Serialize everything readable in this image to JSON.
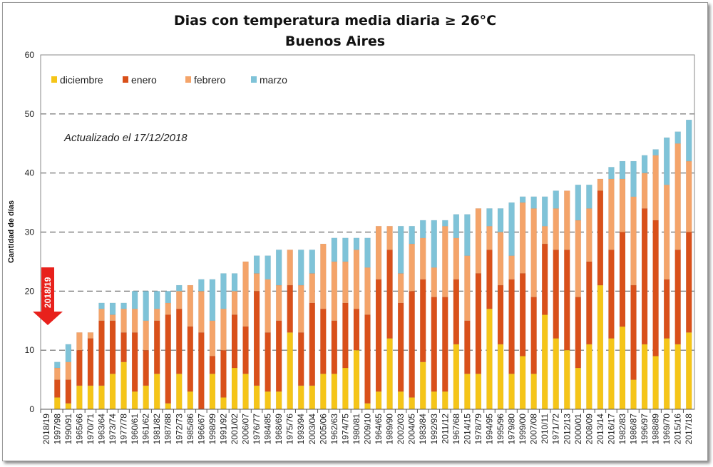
{
  "chart_data": {
    "type": "bar",
    "stacked": true,
    "title": "Dias con temperatura media diaria ≥ 26°C",
    "subtitle": "Buenos Aires",
    "xlabel": "",
    "ylabel": "Cantidad de días",
    "ylim": [
      0,
      60
    ],
    "yticks": [
      0,
      10,
      20,
      30,
      40,
      50,
      60
    ],
    "grid": "horizontal dashed",
    "legend": "top-left",
    "annotation": "Actualizado el 17/12/2018",
    "highlight": {
      "label": "2018/19",
      "color": "#e8211c"
    },
    "categories": [
      "2018/19",
      "1997/98",
      "1990/91",
      "1965/66",
      "1970/71",
      "1963/64",
      "1973/74",
      "1977/78",
      "1960/61",
      "1961/62",
      "1981/82",
      "1987/88",
      "1972/73",
      "1985/86",
      "1966/67",
      "1998/99",
      "1991/92",
      "2001/02",
      "2006/07",
      "1976/77",
      "1984/85",
      "1968/69",
      "1975/76",
      "1993/94",
      "2003/04",
      "2005/06",
      "1962/63",
      "1974/75",
      "1980/81",
      "2009/10",
      "1964/65",
      "1989/90",
      "2002/03",
      "2004/05",
      "1983/84",
      "1992/93",
      "2011/12",
      "1967/68",
      "2014/15",
      "1978/79",
      "1994/95",
      "1995/96",
      "1979/80",
      "1999/00",
      "2007/08",
      "2010/11",
      "1971/72",
      "2012/13",
      "2000/01",
      "2008/09",
      "2013/14",
      "2016/17",
      "1982/83",
      "1986/87",
      "1996/97",
      "1988/89",
      "1969/70",
      "2015/16",
      "2017/18"
    ],
    "series": [
      {
        "name": "diciembre",
        "color": "#f5c518",
        "values": [
          0,
          2,
          1,
          4,
          4,
          4,
          6,
          8,
          3,
          4,
          6,
          1,
          6,
          3,
          0,
          6,
          2,
          7,
          6,
          4,
          3,
          3,
          13,
          4,
          4,
          6,
          6,
          7,
          10,
          1,
          3,
          12,
          3,
          2,
          8,
          3,
          3,
          11,
          6,
          6,
          17,
          11,
          6,
          9,
          6,
          16,
          12,
          10,
          7,
          11,
          21,
          12,
          14,
          5,
          11,
          9,
          12,
          11,
          13
        ]
      },
      {
        "name": "enero",
        "color": "#d9501a",
        "values": [
          0,
          3,
          4,
          6,
          8,
          11,
          9,
          5,
          10,
          6,
          9,
          15,
          11,
          11,
          13,
          3,
          8,
          9,
          8,
          16,
          10,
          12,
          8,
          9,
          14,
          11,
          9,
          11,
          7,
          15,
          19,
          15,
          15,
          18,
          14,
          16,
          16,
          11,
          9,
          17,
          10,
          10,
          16,
          14,
          13,
          12,
          15,
          17,
          12,
          14,
          16,
          15,
          16,
          16,
          23,
          23,
          10,
          16,
          17
        ]
      },
      {
        "name": "febrero",
        "color": "#f4a46a",
        "values": [
          0,
          2,
          3,
          3,
          1,
          2,
          1,
          4,
          4,
          5,
          2,
          2,
          3,
          7,
          7,
          6,
          7,
          4,
          11,
          3,
          9,
          6,
          6,
          8,
          5,
          11,
          10,
          7,
          10,
          8,
          9,
          4,
          5,
          8,
          7,
          5,
          12,
          7,
          11,
          11,
          4,
          9,
          4,
          12,
          15,
          3,
          7,
          10,
          13,
          9,
          2,
          12,
          9,
          15,
          6,
          11,
          16,
          18,
          12
        ]
      },
      {
        "name": "marzo",
        "color": "#7fc3d8",
        "values": [
          0,
          1,
          3,
          0,
          0,
          1,
          2,
          1,
          3,
          5,
          3,
          2,
          1,
          0,
          2,
          7,
          6,
          3,
          0,
          3,
          4,
          6,
          0,
          6,
          4,
          0,
          4,
          4,
          2,
          5,
          0,
          0,
          8,
          3,
          3,
          8,
          1,
          4,
          7,
          0,
          3,
          4,
          9,
          1,
          2,
          5,
          3,
          0,
          6,
          4,
          0,
          2,
          3,
          6,
          3,
          1,
          8,
          2,
          7
        ]
      }
    ]
  }
}
